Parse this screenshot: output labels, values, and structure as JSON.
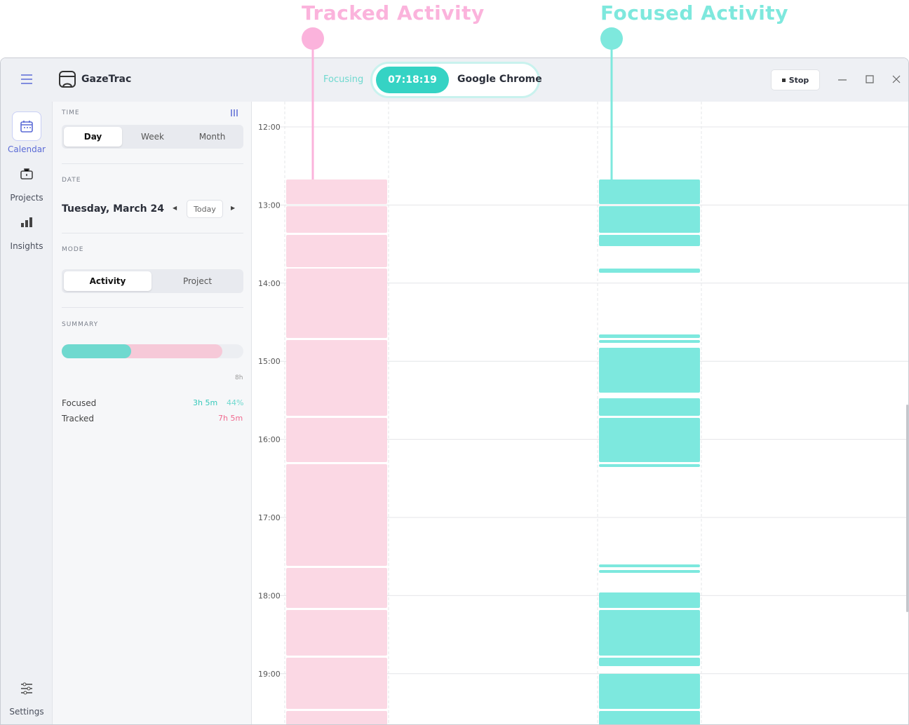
{
  "annotations": {
    "tracked": "Tracked  Activity",
    "focused": "Focused Activity"
  },
  "app": {
    "name": "GazeTrac"
  },
  "status": {
    "state": "Focusing",
    "timer": "07:18:19",
    "app": "Google Chrome",
    "stop": "Stop"
  },
  "nav": [
    "Calendar",
    "Projects",
    "Insights",
    "Settings"
  ],
  "sidebar": {
    "time": {
      "label": "TIME",
      "options": [
        "Day",
        "Week",
        "Month"
      ]
    },
    "date": {
      "label": "DATE",
      "value": "Tuesday, March 24",
      "today": "Today"
    },
    "mode": {
      "label": "MODE",
      "options": [
        "Activity",
        "Project"
      ]
    },
    "summary": {
      "label": "SUMMARY",
      "scale_max": "8h",
      "rows": [
        [
          "Focused",
          "3h 5m",
          "44%"
        ],
        [
          "Tracked",
          "7h 5m"
        ]
      ]
    }
  },
  "calendar": {
    "hours": [
      "12:00",
      "13:00",
      "14:00",
      "15:00",
      "16:00",
      "17:00",
      "18:00",
      "19:00"
    ]
  }
}
